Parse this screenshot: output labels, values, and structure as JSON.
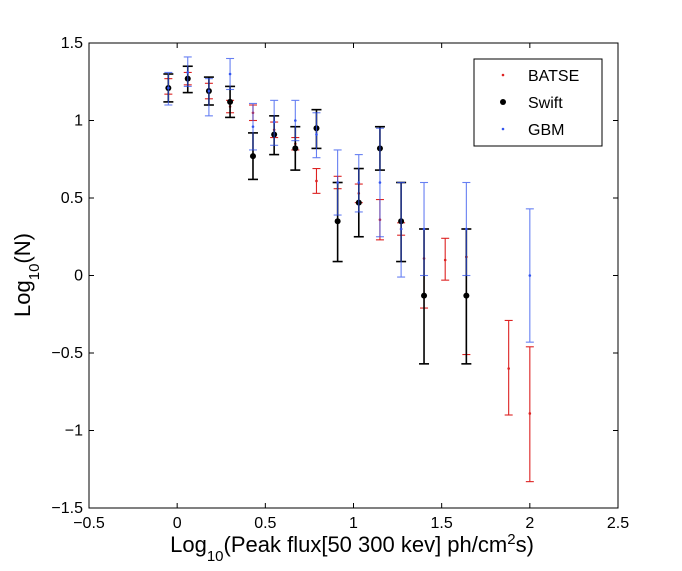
{
  "chart_data": {
    "type": "scatter",
    "title": "",
    "xlabel_main": "Log",
    "xlabel_sub": "10",
    "xlabel_rest": "(Peak flux[50 300 kev] ph/cm",
    "xlabel_sup": "2",
    "xlabel_end": "s)",
    "ylabel_main": "Log",
    "ylabel_sub": "10",
    "ylabel_rest": "(N)",
    "xlim": [
      -0.5,
      2.5
    ],
    "ylim": [
      -1.5,
      1.5
    ],
    "xticks": [
      -0.5,
      0,
      0.5,
      1,
      1.5,
      2,
      2.5
    ],
    "xtick_labels": [
      "−0.5",
      "0",
      "0.5",
      "1",
      "1.5",
      "2",
      "2.5"
    ],
    "yticks": [
      1.5,
      1,
      0.5,
      0,
      -0.5,
      -1,
      -1.5
    ],
    "ytick_labels": [
      "1.5",
      "1",
      "0.5",
      "0",
      "−0.5",
      "−1",
      "−1.5"
    ],
    "legend_position": "top-right",
    "series": [
      {
        "name": "BATSE",
        "color": "#dd2222",
        "marker": "dot-small",
        "points": [
          {
            "x": -0.05,
            "y": 1.22,
            "lo": 1.17,
            "hi": 1.27
          },
          {
            "x": 0.06,
            "y": 1.27,
            "lo": 1.23,
            "hi": 1.31
          },
          {
            "x": 0.18,
            "y": 1.19,
            "lo": 1.14,
            "hi": 1.24
          },
          {
            "x": 0.3,
            "y": 1.09,
            "lo": 1.05,
            "hi": 1.13
          },
          {
            "x": 0.43,
            "y": 1.05,
            "lo": 1.0,
            "hi": 1.1
          },
          {
            "x": 0.55,
            "y": 0.94,
            "lo": 0.89,
            "hi": 0.99
          },
          {
            "x": 0.67,
            "y": 0.85,
            "lo": 0.81,
            "hi": 0.89
          },
          {
            "x": 0.79,
            "y": 0.61,
            "lo": 0.53,
            "hi": 0.69
          },
          {
            "x": 0.91,
            "y": 0.6,
            "lo": 0.56,
            "hi": 0.64
          },
          {
            "x": 1.03,
            "y": 0.53,
            "lo": 0.47,
            "hi": 0.59
          },
          {
            "x": 1.15,
            "y": 0.36,
            "lo": 0.23,
            "hi": 0.49
          },
          {
            "x": 1.27,
            "y": 0.3,
            "lo": 0.26,
            "hi": 0.34
          },
          {
            "x": 1.4,
            "y": 0.11,
            "lo": -0.21,
            "hi": 0.3
          },
          {
            "x": 1.52,
            "y": 0.1,
            "lo": -0.03,
            "hi": 0.24
          },
          {
            "x": 1.64,
            "y": 0.12,
            "lo": -0.51,
            "hi": 0.3
          },
          {
            "x": 1.88,
            "y": -0.6,
            "lo": -0.9,
            "hi": -0.29
          },
          {
            "x": 2.0,
            "y": -0.89,
            "lo": -1.33,
            "hi": -0.46
          }
        ]
      },
      {
        "name": "Swift",
        "color": "#000000",
        "marker": "dot-large",
        "points": [
          {
            "x": -0.05,
            "y": 1.21,
            "lo": 1.12,
            "hi": 1.3
          },
          {
            "x": 0.06,
            "y": 1.27,
            "lo": 1.18,
            "hi": 1.35
          },
          {
            "x": 0.18,
            "y": 1.19,
            "lo": 1.1,
            "hi": 1.28
          },
          {
            "x": 0.3,
            "y": 1.12,
            "lo": 1.02,
            "hi": 1.22
          },
          {
            "x": 0.43,
            "y": 0.77,
            "lo": 0.62,
            "hi": 0.92
          },
          {
            "x": 0.55,
            "y": 0.91,
            "lo": 0.78,
            "hi": 1.03
          },
          {
            "x": 0.67,
            "y": 0.82,
            "lo": 0.68,
            "hi": 0.96
          },
          {
            "x": 0.79,
            "y": 0.95,
            "lo": 0.82,
            "hi": 1.07
          },
          {
            "x": 0.91,
            "y": 0.35,
            "lo": 0.09,
            "hi": 0.6
          },
          {
            "x": 1.03,
            "y": 0.47,
            "lo": 0.25,
            "hi": 0.69
          },
          {
            "x": 1.15,
            "y": 0.82,
            "lo": 0.68,
            "hi": 0.96
          },
          {
            "x": 1.27,
            "y": 0.35,
            "lo": 0.09,
            "hi": 0.6
          },
          {
            "x": 1.4,
            "y": -0.13,
            "lo": -0.57,
            "hi": 0.3
          },
          {
            "x": 1.64,
            "y": -0.13,
            "lo": -0.57,
            "hi": 0.3
          }
        ]
      },
      {
        "name": "GBM",
        "color": "#3355ee",
        "marker": "dot-small",
        "points": [
          {
            "x": -0.05,
            "y": 1.21,
            "lo": 1.1,
            "hi": 1.31
          },
          {
            "x": 0.06,
            "y": 1.31,
            "lo": 1.22,
            "hi": 1.41
          },
          {
            "x": 0.18,
            "y": 1.19,
            "lo": 1.03,
            "hi": 1.27
          },
          {
            "x": 0.3,
            "y": 1.3,
            "lo": 1.2,
            "hi": 1.4
          },
          {
            "x": 0.43,
            "y": 0.96,
            "lo": 0.81,
            "hi": 1.11
          },
          {
            "x": 0.55,
            "y": 0.99,
            "lo": 0.84,
            "hi": 1.13
          },
          {
            "x": 0.67,
            "y": 1.0,
            "lo": 0.87,
            "hi": 1.13
          },
          {
            "x": 0.79,
            "y": 0.91,
            "lo": 0.76,
            "hi": 1.05
          },
          {
            "x": 0.91,
            "y": 0.6,
            "lo": 0.39,
            "hi": 0.81
          },
          {
            "x": 1.03,
            "y": 0.6,
            "lo": 0.41,
            "hi": 0.78
          },
          {
            "x": 1.15,
            "y": 0.6,
            "lo": 0.25,
            "hi": 0.95
          },
          {
            "x": 1.27,
            "y": 0.3,
            "lo": -0.01,
            "hi": 0.6
          },
          {
            "x": 1.4,
            "y": 0.3,
            "lo": 0.0,
            "hi": 0.6
          },
          {
            "x": 1.64,
            "y": 0.3,
            "lo": 0.0,
            "hi": 0.6
          },
          {
            "x": 2.0,
            "y": 0.0,
            "lo": -0.43,
            "hi": 0.43
          }
        ]
      }
    ]
  }
}
